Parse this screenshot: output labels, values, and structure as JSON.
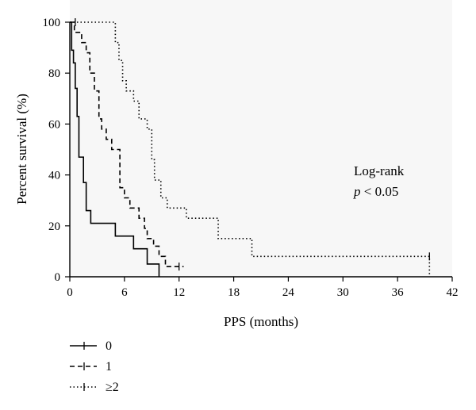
{
  "chart_data": {
    "type": "line",
    "step": true,
    "xlabel": "PPS (months)",
    "ylabel": "Percent survival (%)",
    "xlim": [
      0,
      42
    ],
    "ylim": [
      0,
      100
    ],
    "xticks": [
      0,
      6,
      12,
      18,
      24,
      30,
      36,
      42
    ],
    "yticks": [
      0,
      20,
      40,
      60,
      80,
      100
    ],
    "grid": false,
    "legend_position": "bottom-left",
    "annotation": {
      "line1": "Log-rank",
      "line2_italic": "p",
      "line2_rest": " < 0.05"
    },
    "series": [
      {
        "name": "0",
        "dash": "solid",
        "x": [
          0,
          0.2,
          0.4,
          0.6,
          0.8,
          1.0,
          1.5,
          1.8,
          2.3,
          5.0,
          7.0,
          8.5,
          9.8
        ],
        "y": [
          100,
          89,
          84,
          74,
          63,
          47,
          37,
          26,
          21,
          16,
          11,
          5,
          0
        ],
        "censor_x": [],
        "censor_y": []
      },
      {
        "name": "1",
        "dash": "dashed",
        "x": [
          0,
          0.5,
          1.3,
          1.8,
          2.2,
          2.7,
          3.2,
          3.5,
          4.0,
          4.6,
          5.5,
          6.0,
          6.6,
          7.6,
          8.2,
          8.5,
          9.2,
          9.8,
          10.5,
          12.5
        ],
        "y": [
          100,
          96,
          92,
          88,
          80,
          73,
          62,
          58,
          54,
          50,
          35,
          31,
          27,
          23,
          19,
          15,
          12,
          8,
          4,
          4
        ],
        "censor_x": [
          12.0
        ],
        "censor_y": [
          4
        ]
      },
      {
        "name": "≥2",
        "dash": "dotted",
        "x": [
          0,
          0.6,
          5.0,
          5.4,
          5.8,
          6.2,
          7.0,
          7.6,
          8.5,
          9.0,
          9.3,
          10.0,
          10.7,
          12.8,
          16.3,
          20.0,
          39.5
        ],
        "y": [
          100,
          100,
          92,
          85,
          77,
          73,
          69,
          62,
          58,
          46,
          38,
          31,
          27,
          23,
          15,
          8,
          0
        ],
        "censor_x": [
          0.6,
          39.5
        ],
        "censor_y": [
          100,
          8
        ]
      }
    ]
  }
}
